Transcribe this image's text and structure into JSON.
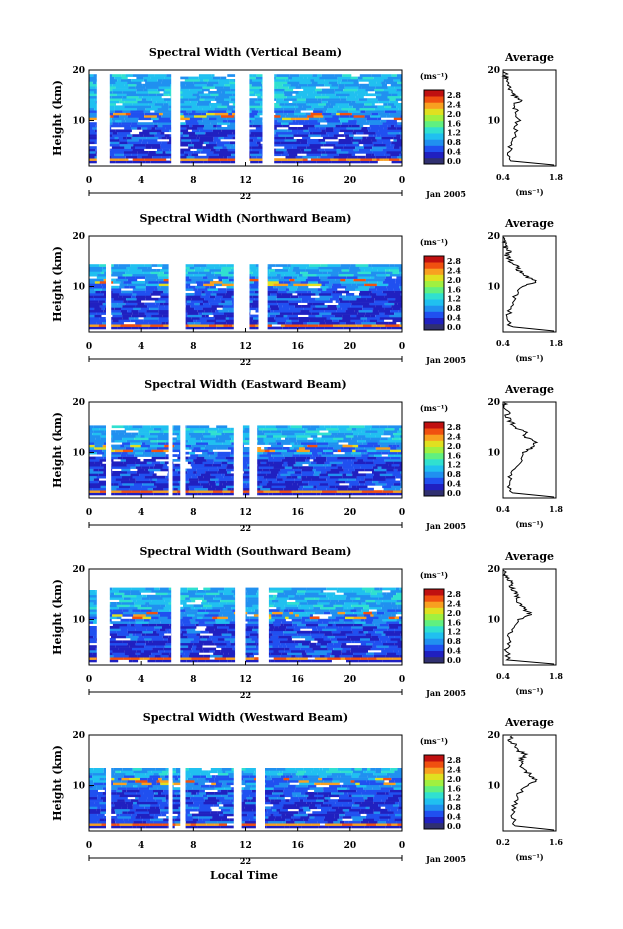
{
  "figure": {
    "xlabel": "Local Time",
    "date_label": "Jan 2005",
    "day_label": "22",
    "ylabel": "Height (km)",
    "unit_label": "(ms⁻¹)",
    "avg_title": "Average",
    "avg_xlabel": "(ms⁻¹)"
  },
  "colors": {
    "frame": "#000000",
    "profile": "#000000",
    "scale": [
      "#303070",
      "#2020c0",
      "#2050f0",
      "#2090f0",
      "#20c0f0",
      "#30e0d0",
      "#60f080",
      "#a0f040",
      "#e0e020",
      "#f8a020",
      "#f05010",
      "#c01010"
    ]
  },
  "chart_data": [
    {
      "type": "heatmap",
      "title": "Spectral Width (Vertical Beam)",
      "xlabel": "Local Time",
      "ylabel": "Height (km)",
      "xlim": [
        0,
        24
      ],
      "ylim": [
        1,
        20
      ],
      "xticks": [
        "0",
        "4",
        "8",
        "12",
        "16",
        "20",
        "0"
      ],
      "yticks": [
        "10",
        "20"
      ],
      "colorbar_ticks": [
        "0.0",
        "0.4",
        "0.8",
        "1.2",
        "1.6",
        "2.0",
        "2.4",
        "2.8"
      ],
      "avg_xticks": [
        "0.4",
        "1.8"
      ],
      "avg_xlim": [
        0.4,
        1.8
      ],
      "data_gaps_hours": [
        [
          0.6,
          1.6
        ],
        [
          6.3,
          7.0
        ],
        [
          11.2,
          12.3
        ],
        [
          13.3,
          14.2
        ]
      ],
      "data_top_km": 19,
      "average_profile": {
        "height_km": [
          2,
          4,
          6,
          8,
          10,
          12,
          13,
          14,
          15,
          16,
          17,
          18,
          19
        ],
        "width": [
          0.6,
          0.55,
          0.65,
          0.75,
          0.8,
          0.75,
          0.7,
          0.85,
          0.7,
          0.6,
          0.5,
          0.55,
          0.45
        ]
      }
    },
    {
      "type": "heatmap",
      "title": "Spectral Width (Northward Beam)",
      "xlabel": "Local Time",
      "ylabel": "Height (km)",
      "xlim": [
        0,
        24
      ],
      "ylim": [
        1,
        20
      ],
      "xticks": [
        "0",
        "4",
        "8",
        "12",
        "16",
        "20",
        "0"
      ],
      "yticks": [
        "10",
        "20"
      ],
      "colorbar_ticks": [
        "0.0",
        "0.4",
        "0.8",
        "1.2",
        "1.6",
        "2.0",
        "2.4",
        "2.8"
      ],
      "avg_xticks": [
        "0.4",
        "1.8"
      ],
      "avg_xlim": [
        0.4,
        1.8
      ],
      "data_gaps_hours": [
        [
          1.3,
          1.7
        ],
        [
          6.1,
          7.4
        ],
        [
          11.1,
          12.3
        ],
        [
          13.0,
          13.7
        ]
      ],
      "data_top_km": 14,
      "average_profile": {
        "height_km": [
          2,
          4,
          6,
          8,
          10,
          11,
          12,
          13,
          14,
          15,
          16,
          17,
          18,
          19
        ],
        "width": [
          0.6,
          0.55,
          0.6,
          0.7,
          0.95,
          1.3,
          1.0,
          0.85,
          0.75,
          0.6,
          0.5,
          0.55,
          0.45,
          0.45
        ]
      }
    },
    {
      "type": "heatmap",
      "title": "Spectral Width (Eastward Beam)",
      "xlabel": "Local Time",
      "ylabel": "Height (km)",
      "xlim": [
        0,
        24
      ],
      "ylim": [
        1,
        20
      ],
      "xticks": [
        "0",
        "4",
        "8",
        "12",
        "16",
        "20",
        "0"
      ],
      "yticks": [
        "10",
        "20"
      ],
      "colorbar_ticks": [
        "0.0",
        "0.4",
        "0.8",
        "1.2",
        "1.6",
        "2.0",
        "2.4",
        "2.8"
      ],
      "avg_xticks": [
        "0.4",
        "1.8"
      ],
      "avg_xlim": [
        0.4,
        1.8
      ],
      "data_gaps_hours": [
        [
          1.3,
          1.7
        ],
        [
          6.1,
          6.4
        ],
        [
          7.0,
          7.4
        ],
        [
          11.1,
          11.8
        ],
        [
          12.3,
          12.9
        ]
      ],
      "data_top_km": 15,
      "average_profile": {
        "height_km": [
          2,
          4,
          6,
          8,
          10,
          11,
          12,
          13,
          14,
          15,
          16,
          17,
          18,
          19
        ],
        "width": [
          0.6,
          0.55,
          0.65,
          0.85,
          0.9,
          1.2,
          1.25,
          1.0,
          1.0,
          0.75,
          0.6,
          0.5,
          0.55,
          0.45
        ]
      }
    },
    {
      "type": "heatmap",
      "title": "Spectral Width (Southward Beam)",
      "xlabel": "Local Time",
      "ylabel": "Height (km)",
      "xlim": [
        0,
        24
      ],
      "ylim": [
        1,
        20
      ],
      "xticks": [
        "0",
        "4",
        "8",
        "12",
        "16",
        "20",
        "0"
      ],
      "yticks": [
        "10",
        "20"
      ],
      "colorbar_ticks": [
        "0.0",
        "0.4",
        "0.8",
        "1.2",
        "1.6",
        "2.0",
        "2.4",
        "2.8"
      ],
      "avg_xticks": [
        "0.4",
        "1.8"
      ],
      "avg_xlim": [
        0.4,
        1.8
      ],
      "data_gaps_hours": [
        [
          0.6,
          1.6
        ],
        [
          6.3,
          7.0
        ],
        [
          11.2,
          12.0
        ],
        [
          13.0,
          13.8
        ]
      ],
      "data_top_km": 16,
      "average_profile": {
        "height_km": [
          2,
          4,
          6,
          8,
          10,
          11,
          12,
          13,
          14,
          15,
          16,
          17,
          18,
          19
        ],
        "width": [
          0.55,
          0.5,
          0.55,
          0.65,
          0.85,
          1.15,
          0.95,
          0.85,
          0.8,
          0.75,
          0.65,
          0.6,
          0.55,
          0.45
        ]
      }
    },
    {
      "type": "heatmap",
      "title": "Spectral Width (Westward Beam)",
      "xlabel": "Local Time",
      "ylabel": "Height (km)",
      "xlim": [
        0,
        24
      ],
      "ylim": [
        1,
        20
      ],
      "xticks": [
        "0",
        "4",
        "8",
        "12",
        "16",
        "20",
        "0"
      ],
      "yticks": [
        "10",
        "20"
      ],
      "colorbar_ticks": [
        "0.0",
        "0.4",
        "0.8",
        "1.2",
        "1.6",
        "2.0",
        "2.4",
        "2.8"
      ],
      "avg_xticks": [
        "0.2",
        "1.6"
      ],
      "avg_xlim": [
        0.2,
        1.6
      ],
      "data_gaps_hours": [
        [
          1.3,
          1.7
        ],
        [
          6.1,
          6.4
        ],
        [
          7.0,
          7.4
        ],
        [
          11.1,
          11.7
        ],
        [
          12.8,
          13.5
        ]
      ],
      "data_top_km": 13,
      "average_profile": {
        "height_km": [
          2,
          4,
          6,
          8,
          10,
          11,
          12,
          13,
          14,
          15,
          16,
          17,
          18,
          19
        ],
        "width": [
          0.5,
          0.45,
          0.5,
          0.6,
          0.8,
          1.1,
          0.95,
          0.75,
          0.7,
          0.65,
          0.8,
          0.6,
          0.5,
          0.4
        ]
      }
    }
  ]
}
